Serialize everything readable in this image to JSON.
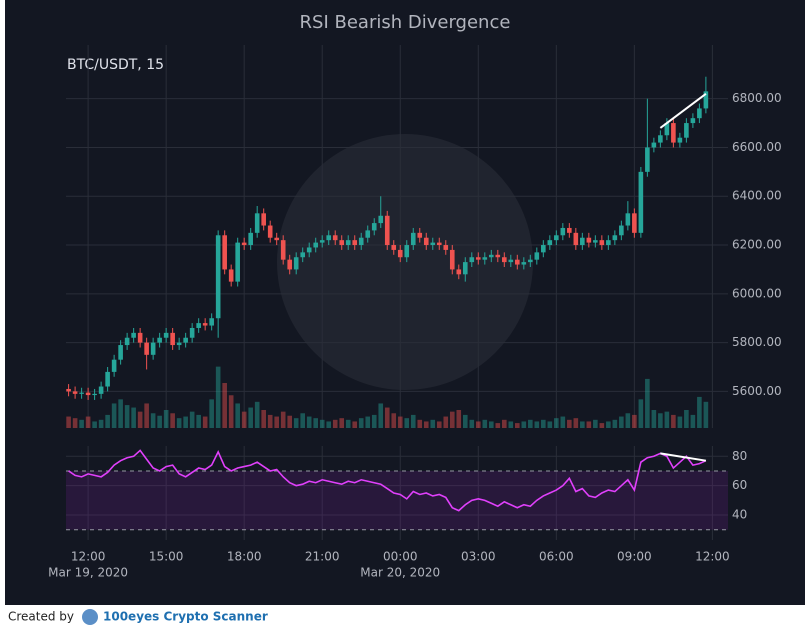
{
  "title": "RSI Bearish Divergence",
  "footer": {
    "created_by": "Created by",
    "brand": "100eyes Crypto Scanner"
  },
  "chart_data": [
    {
      "type": "candlestick",
      "label": "BTC/USDT, 15",
      "x": [
        11.25,
        11.5,
        11.75,
        12,
        12.25,
        12.5,
        12.75,
        13,
        13.25,
        13.5,
        13.75,
        14,
        14.25,
        14.5,
        14.75,
        15,
        15.25,
        15.5,
        15.75,
        16,
        16.25,
        16.5,
        16.75,
        17,
        17.25,
        17.5,
        17.75,
        18,
        18.25,
        18.5,
        18.75,
        19,
        19.25,
        19.5,
        19.75,
        20,
        20.25,
        20.5,
        20.75,
        21,
        21.25,
        21.5,
        21.75,
        22,
        22.25,
        22.5,
        22.75,
        23,
        23.25,
        23.5,
        23.75,
        24,
        24.25,
        24.5,
        24.75,
        25,
        25.25,
        25.5,
        25.75,
        26,
        26.25,
        26.5,
        26.75,
        27,
        27.25,
        27.5,
        27.75,
        28,
        28.25,
        28.5,
        28.75,
        29,
        29.25,
        29.5,
        29.75,
        30,
        30.25,
        30.5,
        30.75,
        31,
        31.25,
        31.5,
        31.75,
        32,
        32.25,
        32.5,
        32.75,
        33,
        33.25,
        33.5,
        33.75,
        34,
        34.25,
        34.5,
        34.75,
        35,
        35.25,
        35.5,
        35.75
      ],
      "open": [
        5610,
        5600,
        5590,
        5595,
        5585,
        5590,
        5620,
        5680,
        5730,
        5790,
        5820,
        5840,
        5800,
        5750,
        5800,
        5820,
        5840,
        5790,
        5800,
        5820,
        5860,
        5880,
        5870,
        5900,
        6240,
        6100,
        6050,
        6210,
        6200,
        6250,
        6330,
        6280,
        6230,
        6220,
        6140,
        6100,
        6150,
        6170,
        6190,
        6210,
        6220,
        6240,
        6220,
        6200,
        6220,
        6200,
        6230,
        6260,
        6290,
        6320,
        6200,
        6180,
        6150,
        6200,
        6250,
        6230,
        6200,
        6210,
        6200,
        6180,
        6100,
        6080,
        6130,
        6150,
        6140,
        6150,
        6160,
        6150,
        6130,
        6140,
        6120,
        6130,
        6140,
        6170,
        6200,
        6220,
        6240,
        6270,
        6250,
        6200,
        6230,
        6210,
        6220,
        6200,
        6220,
        6240,
        6280,
        6330,
        6250,
        6500,
        6600,
        6620,
        6650,
        6700,
        6620,
        6640,
        6700,
        6720,
        6760
      ],
      "high": [
        5630,
        5620,
        5615,
        5615,
        5610,
        5640,
        5700,
        5750,
        5810,
        5840,
        5860,
        5860,
        5820,
        5820,
        5840,
        5860,
        5860,
        5820,
        5840,
        5880,
        5900,
        5900,
        5920,
        6260,
        6260,
        6120,
        6230,
        6230,
        6270,
        6360,
        6350,
        6300,
        6250,
        6240,
        6160,
        6170,
        6190,
        6210,
        6230,
        6240,
        6260,
        6260,
        6240,
        6240,
        6240,
        6250,
        6280,
        6310,
        6400,
        6340,
        6220,
        6200,
        6220,
        6270,
        6270,
        6250,
        6230,
        6230,
        6220,
        6200,
        6120,
        6150,
        6170,
        6170,
        6170,
        6180,
        6180,
        6170,
        6160,
        6160,
        6150,
        6160,
        6190,
        6220,
        6240,
        6260,
        6290,
        6290,
        6270,
        6250,
        6250,
        6240,
        6240,
        6240,
        6260,
        6300,
        6380,
        6350,
        6520,
        6800,
        6640,
        6670,
        6720,
        6720,
        6660,
        6720,
        6740,
        6780,
        6890
      ],
      "low": [
        5580,
        5570,
        5570,
        5565,
        5565,
        5570,
        5600,
        5660,
        5710,
        5770,
        5800,
        5780,
        5690,
        5730,
        5780,
        5800,
        5770,
        5770,
        5780,
        5800,
        5840,
        5850,
        5850,
        5820,
        6080,
        6030,
        6030,
        6180,
        6180,
        6230,
        6260,
        6210,
        6200,
        6120,
        6080,
        6080,
        6130,
        6150,
        6170,
        6190,
        6200,
        6200,
        6180,
        6180,
        6180,
        6180,
        6210,
        6240,
        6270,
        6180,
        6160,
        6130,
        6130,
        6180,
        6210,
        6180,
        6180,
        6180,
        6160,
        6080,
        6060,
        6050,
        6110,
        6120,
        6120,
        6130,
        6130,
        6110,
        6110,
        6100,
        6100,
        6110,
        6120,
        6150,
        6180,
        6200,
        6220,
        6230,
        6180,
        6180,
        6190,
        6190,
        6180,
        6180,
        6200,
        6220,
        6260,
        6230,
        6230,
        6480,
        6580,
        6600,
        6630,
        6600,
        6600,
        6620,
        6680,
        6700,
        6740
      ],
      "close": [
        5600,
        5590,
        5595,
        5585,
        5590,
        5620,
        5680,
        5730,
        5790,
        5820,
        5840,
        5800,
        5750,
        5800,
        5820,
        5840,
        5790,
        5800,
        5820,
        5860,
        5880,
        5870,
        5900,
        6240,
        6100,
        6050,
        6210,
        6200,
        6250,
        6330,
        6280,
        6230,
        6220,
        6140,
        6100,
        6150,
        6170,
        6190,
        6210,
        6220,
        6240,
        6220,
        6200,
        6220,
        6200,
        6230,
        6260,
        6290,
        6320,
        6200,
        6180,
        6150,
        6200,
        6250,
        6230,
        6200,
        6210,
        6200,
        6180,
        6100,
        6080,
        6130,
        6150,
        6140,
        6150,
        6160,
        6150,
        6130,
        6140,
        6120,
        6130,
        6140,
        6170,
        6200,
        6220,
        6240,
        6270,
        6250,
        6200,
        6230,
        6210,
        6220,
        6200,
        6220,
        6240,
        6280,
        6330,
        6250,
        6500,
        6600,
        6620,
        6650,
        6700,
        6620,
        6640,
        6700,
        6720,
        6760,
        6830
      ],
      "volume": [
        14,
        12,
        10,
        14,
        8,
        10,
        16,
        30,
        35,
        28,
        25,
        20,
        30,
        18,
        15,
        22,
        18,
        12,
        14,
        20,
        16,
        14,
        35,
        75,
        55,
        40,
        30,
        20,
        25,
        32,
        22,
        16,
        14,
        20,
        15,
        12,
        18,
        14,
        12,
        10,
        8,
        10,
        12,
        10,
        8,
        12,
        14,
        16,
        30,
        25,
        18,
        14,
        12,
        16,
        10,
        8,
        10,
        8,
        14,
        20,
        22,
        16,
        10,
        8,
        10,
        8,
        6,
        10,
        8,
        6,
        8,
        10,
        8,
        10,
        8,
        12,
        14,
        10,
        12,
        8,
        8,
        10,
        6,
        8,
        10,
        14,
        18,
        16,
        35,
        60,
        22,
        18,
        20,
        16,
        14,
        22,
        16,
        38,
        32
      ],
      "up_color": "#26a69a",
      "down_color": "#ef5350",
      "xlim": [
        11.15,
        36.6
      ],
      "xticks": [
        12,
        15,
        18,
        21,
        24,
        27,
        30,
        33,
        36
      ],
      "ylim": [
        5450,
        7020
      ],
      "yticks": [
        {
          "value": 5600,
          "label": "5600.00"
        },
        {
          "value": 5800,
          "label": "5800.00"
        },
        {
          "value": 6000,
          "label": "6000.00"
        },
        {
          "value": 6200,
          "label": "6200.00"
        },
        {
          "value": 6400,
          "label": "6400.00"
        },
        {
          "value": 6600,
          "label": "6600.00"
        },
        {
          "value": 6800,
          "label": "6800.00"
        }
      ],
      "volume_lim": [
        0,
        110
      ],
      "grid": true,
      "divergence": {
        "x": [
          34,
          35.75
        ],
        "values": [
          6680,
          6820
        ],
        "color": "#ffffff"
      }
    },
    {
      "type": "line",
      "x": [
        11.25,
        11.5,
        11.75,
        12,
        12.25,
        12.5,
        12.75,
        13,
        13.25,
        13.5,
        13.75,
        14,
        14.25,
        14.5,
        14.75,
        15,
        15.25,
        15.5,
        15.75,
        16,
        16.25,
        16.5,
        16.75,
        17,
        17.25,
        17.5,
        17.75,
        18,
        18.25,
        18.5,
        18.75,
        19,
        19.25,
        19.5,
        19.75,
        20,
        20.25,
        20.5,
        20.75,
        21,
        21.25,
        21.5,
        21.75,
        22,
        22.25,
        22.5,
        22.75,
        23,
        23.25,
        23.5,
        23.75,
        24,
        24.25,
        24.5,
        24.75,
        25,
        25.25,
        25.5,
        25.75,
        26,
        26.25,
        26.5,
        26.75,
        27,
        27.25,
        27.5,
        27.75,
        28,
        28.25,
        28.5,
        28.75,
        29,
        29.25,
        29.5,
        29.75,
        30,
        30.25,
        30.5,
        30.75,
        31,
        31.25,
        31.5,
        31.75,
        32,
        32.25,
        32.5,
        32.75,
        33,
        33.25,
        33.5,
        33.75,
        34,
        34.25,
        34.5,
        34.75,
        35,
        35.25,
        35.5,
        35.75
      ],
      "values": [
        70,
        67,
        66,
        68,
        67,
        66,
        69,
        74,
        77,
        79,
        80,
        84,
        78,
        72,
        70,
        73,
        74,
        68,
        66,
        69,
        72,
        71,
        74,
        83,
        73,
        70,
        72,
        73,
        74,
        76,
        73,
        70,
        71,
        66,
        62,
        60,
        61,
        63,
        62,
        64,
        63,
        62,
        61,
        63,
        62,
        64,
        63,
        62,
        61,
        58,
        55,
        54,
        51,
        56,
        54,
        55,
        53,
        54,
        52,
        45,
        43,
        47,
        50,
        51,
        50,
        48,
        46,
        49,
        47,
        45,
        47,
        46,
        50,
        53,
        55,
        57,
        60,
        65,
        56,
        58,
        53,
        52,
        55,
        57,
        56,
        60,
        64,
        57,
        76,
        79,
        80,
        82,
        80,
        72,
        76,
        80,
        74,
        75,
        77
      ],
      "color": "#e040fb",
      "xlim": [
        11.15,
        36.6
      ],
      "xticks": [
        {
          "value": 12,
          "label": "12:00"
        },
        {
          "value": 15,
          "label": "15:00"
        },
        {
          "value": 18,
          "label": "18:00"
        },
        {
          "value": 21,
          "label": "21:00"
        },
        {
          "value": 24,
          "label": "00:00"
        },
        {
          "value": 27,
          "label": "03:00"
        },
        {
          "value": 30,
          "label": "06:00"
        },
        {
          "value": 33,
          "label": "09:00"
        },
        {
          "value": 36,
          "label": "12:00"
        }
      ],
      "date_ticks": [
        {
          "value": 12,
          "label": "Mar 19, 2020"
        },
        {
          "value": 24,
          "label": "Mar 20, 2020"
        }
      ],
      "ylim": [
        23,
        87
      ],
      "yticks": [
        40,
        60,
        80
      ],
      "bands": [
        30,
        70
      ],
      "band_color": "#7b1fa2",
      "grid": true,
      "divergence": {
        "x": [
          34,
          35.75
        ],
        "values": [
          82,
          77
        ],
        "color": "#ffffff"
      }
    }
  ]
}
